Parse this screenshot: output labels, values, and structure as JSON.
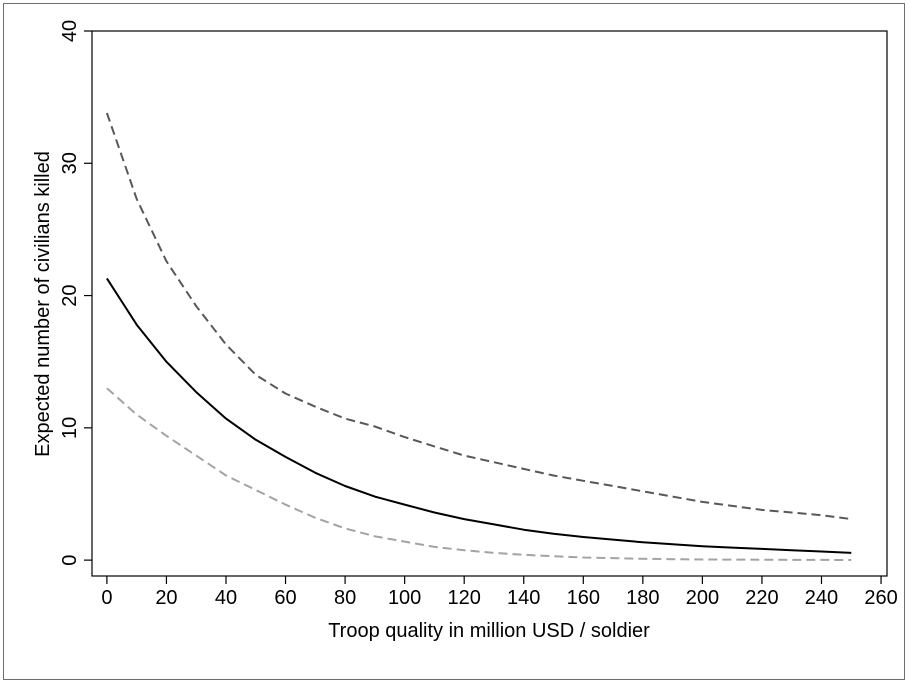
{
  "chart_data": {
    "type": "line",
    "title": "",
    "xlabel": "Troop quality in million USD / soldier",
    "ylabel": "Expected number of civilians killed",
    "xlim": [
      -5,
      262
    ],
    "ylim": [
      -1.2,
      40
    ],
    "xticks": [
      0,
      20,
      40,
      60,
      80,
      100,
      120,
      140,
      160,
      180,
      200,
      220,
      240,
      260
    ],
    "yticks": [
      0,
      10,
      20,
      30,
      40
    ],
    "grid": false,
    "legend": "none",
    "series": [
      {
        "style": "dashed",
        "color": "#585858",
        "x": [
          0,
          10,
          20,
          30,
          40,
          50,
          60,
          70,
          80,
          90,
          100,
          110,
          120,
          130,
          140,
          150,
          160,
          170,
          180,
          190,
          200,
          210,
          220,
          230,
          240,
          250
        ],
        "y": [
          33.8,
          27.3,
          22.6,
          19.2,
          16.3,
          14.0,
          12.6,
          11.6,
          10.7,
          10.1,
          9.3,
          8.6,
          7.9,
          7.4,
          6.9,
          6.4,
          6.0,
          5.6,
          5.2,
          4.8,
          4.4,
          4.1,
          3.8,
          3.6,
          3.4,
          3.1
        ]
      },
      {
        "style": "solid",
        "color": "#000000",
        "x": [
          0,
          10,
          20,
          30,
          40,
          50,
          60,
          70,
          80,
          90,
          100,
          110,
          120,
          130,
          140,
          150,
          160,
          170,
          180,
          190,
          200,
          210,
          220,
          230,
          240,
          250
        ],
        "y": [
          21.3,
          17.8,
          15.0,
          12.7,
          10.7,
          9.1,
          7.8,
          6.6,
          5.6,
          4.8,
          4.2,
          3.6,
          3.1,
          2.7,
          2.3,
          2.0,
          1.75,
          1.55,
          1.35,
          1.2,
          1.05,
          0.95,
          0.85,
          0.75,
          0.65,
          0.55
        ]
      },
      {
        "style": "dashed",
        "color": "#a3a3a3",
        "x": [
          0,
          10,
          20,
          30,
          40,
          50,
          60,
          70,
          80,
          90,
          100,
          110,
          120,
          130,
          140,
          150,
          160,
          170,
          180,
          190,
          200,
          210,
          220,
          230,
          240,
          250
        ],
        "y": [
          13.0,
          11.0,
          9.4,
          7.9,
          6.4,
          5.3,
          4.2,
          3.2,
          2.4,
          1.8,
          1.4,
          1.0,
          0.75,
          0.55,
          0.4,
          0.3,
          0.2,
          0.15,
          0.1,
          0.07,
          0.05,
          0.04,
          0.03,
          0.02,
          0.02,
          0.01
        ]
      }
    ]
  },
  "colors": {
    "axis": "#000000",
    "frame": "#6e6e6e",
    "background": "#ffffff"
  }
}
